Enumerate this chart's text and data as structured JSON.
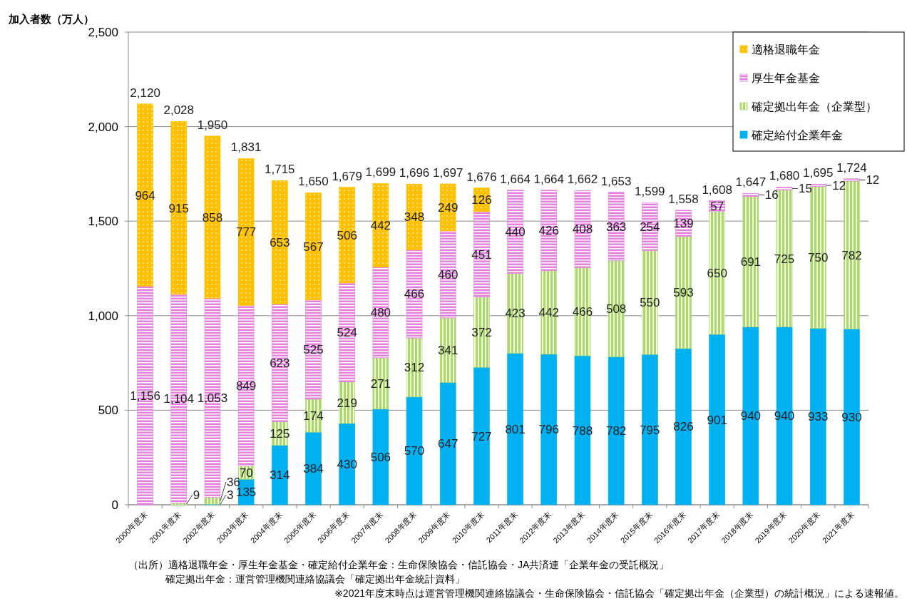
{
  "chart_data": {
    "type": "bar",
    "stacked": true,
    "ylabel": "加入者数（万人）",
    "categories": [
      "2000年度末",
      "2001年度末",
      "2002年度末",
      "2003年度末",
      "2004年度末",
      "2005年度末",
      "2006年度末",
      "2007年度末",
      "2008年度末",
      "2009年度末",
      "2010年度末",
      "2011年度末",
      "2012年度末",
      "2013年度末",
      "2014年度末",
      "2015年度末",
      "2016年度末",
      "2017年度末",
      "2018年度末",
      "2019年度末",
      "2020年度末",
      "2021年度末"
    ],
    "series": [
      {
        "name": "確定給付企業年金",
        "color": "#00b0f0",
        "values": [
          null,
          null,
          3,
          135,
          314,
          384,
          430,
          506,
          570,
          647,
          727,
          801,
          796,
          788,
          782,
          795,
          826,
          901,
          940,
          940,
          933,
          930
        ],
        "value_labels": [
          null,
          null,
          "3",
          "135",
          "314",
          "384",
          "430",
          "506",
          "570",
          "647",
          "727",
          "801",
          "796",
          "788",
          "782",
          "795",
          "826",
          "901",
          "940",
          "940",
          "933",
          "930"
        ]
      },
      {
        "name": "確定拠出年金（企業型）",
        "color": "#a9d86e",
        "values": [
          null,
          9,
          36,
          70,
          125,
          174,
          219,
          271,
          312,
          341,
          372,
          423,
          442,
          466,
          508,
          550,
          593,
          650,
          691,
          725,
          750,
          782
        ],
        "value_labels": [
          null,
          "9",
          "36",
          "70",
          "125",
          "174",
          "219",
          "271",
          "312",
          "341",
          "372",
          "423",
          "442",
          "466",
          "508",
          "550",
          "593",
          "650",
          "691",
          "725",
          "750",
          "782"
        ]
      },
      {
        "name": "厚生年金基金",
        "color": "#e580e0",
        "values": [
          1156,
          1104,
          1053,
          849,
          623,
          525,
          524,
          480,
          466,
          460,
          451,
          440,
          426,
          408,
          363,
          254,
          139,
          57,
          16,
          15,
          12,
          12
        ],
        "value_labels": [
          "1,156",
          "1,104",
          "1,053",
          "849",
          "623",
          "525",
          "524",
          "480",
          "466",
          "460",
          "451",
          "440",
          "426",
          "408",
          "363",
          "254",
          "139",
          "57",
          "16",
          "15",
          "12",
          "12"
        ]
      },
      {
        "name": "適格退職年金",
        "color": "#ffc000",
        "values": [
          964,
          915,
          858,
          777,
          653,
          567,
          506,
          442,
          348,
          249,
          126,
          null,
          null,
          null,
          null,
          null,
          null,
          null,
          null,
          null,
          null,
          null
        ],
        "value_labels": [
          "964",
          "915",
          "858",
          "777",
          "653",
          "567",
          "506",
          "442",
          "348",
          "249",
          "126",
          null,
          null,
          null,
          null,
          null,
          null,
          null,
          null,
          null,
          null,
          null
        ]
      }
    ],
    "totals": [
      "2,120",
      "2,028",
      "1,950",
      "1,831",
      "1,715",
      "1,650",
      "1,679",
      "1,699",
      "1,696",
      "1,697",
      "1,676",
      "1,664",
      "1,664",
      "1,662",
      "1,653",
      "1,599",
      "1,558",
      "1,608",
      "1,647",
      "1,680",
      "1,695",
      "1,724"
    ],
    "ylim": [
      0,
      2500
    ],
    "yticks": [
      0,
      500,
      {
        "value": 1000,
        "label": "1,000"
      },
      {
        "value": 1500,
        "label": "1,500"
      },
      {
        "value": 2000,
        "label": "2,000"
      },
      {
        "value": 2500,
        "label": "2,500"
      }
    ],
    "grid": "y",
    "legend": "top right",
    "annotations": [
      "（出所）適格退職年金・厚生年金基金・確定給付企業年金：生命保険協会・信託協会・JA共済連「企業年金の受託概況」",
      "確定拠出年金：運営管理機関連絡協議会「確定拠出年金統計資料」",
      "※2021年度末時点は運営管理機関連絡協議会・生命保険協会・信託協会「確定拠出年金（企業型）の統計概況」による速報値。"
    ]
  }
}
